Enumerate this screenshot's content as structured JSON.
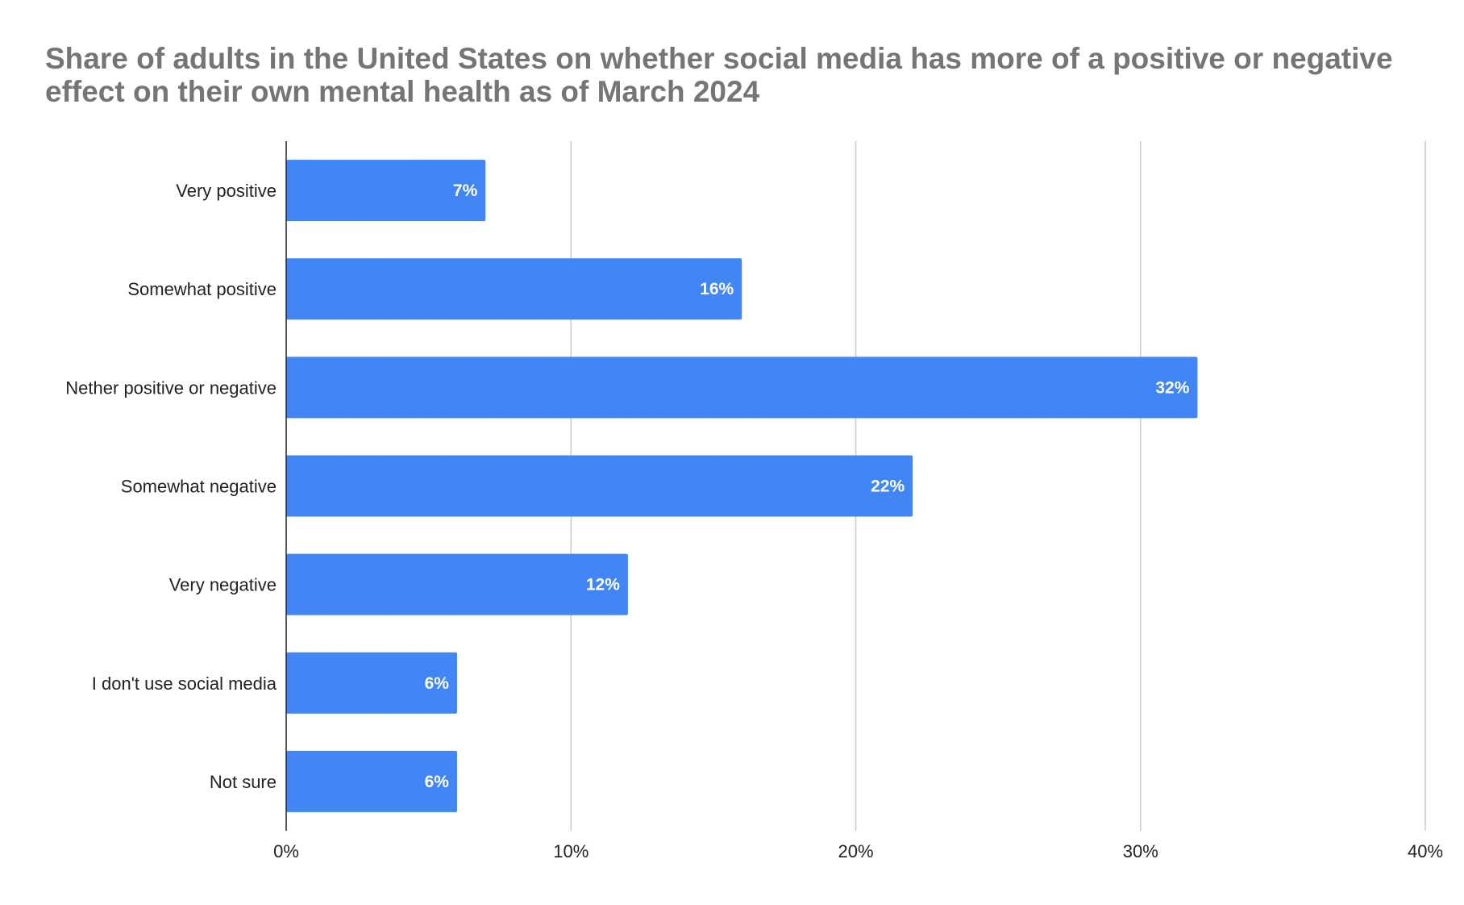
{
  "chart_data": {
    "type": "bar",
    "orientation": "horizontal",
    "title": "Share of adults in the United States on whether social media has more of a positive or negative effect on their own mental health as of March 2024",
    "categories": [
      "Very positive",
      "Somewhat positive",
      "Nether positive or negative",
      "Somewhat negative",
      "Very negative",
      "I don't use social media",
      "Not sure"
    ],
    "values": [
      7,
      16,
      32,
      22,
      12,
      6,
      6
    ],
    "data_labels": [
      "7%",
      "16%",
      "32%",
      "22%",
      "12%",
      "6%",
      "6%"
    ],
    "xlim": [
      0,
      40
    ],
    "x_ticks": [
      0,
      10,
      20,
      30,
      40
    ],
    "x_tick_labels": [
      "0%",
      "10%",
      "20%",
      "30%",
      "40%"
    ],
    "xlabel": "",
    "ylabel": "",
    "grid": "vertical",
    "bar_color": "#4285f4",
    "title_color": "#757575"
  }
}
